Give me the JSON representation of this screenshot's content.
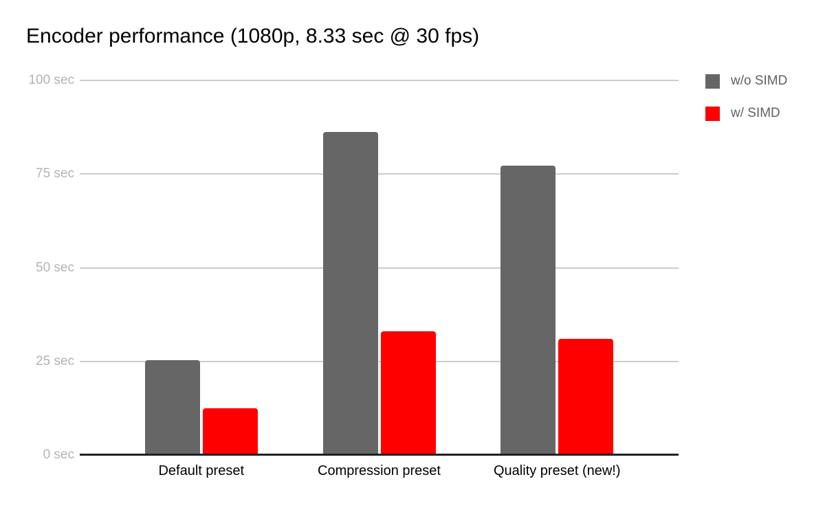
{
  "chart_data": {
    "type": "bar",
    "title": "Encoder performance (1080p, 8.33 sec @ 30 fps)",
    "categories": [
      "Default preset",
      "Compression preset",
      "Quality preset (new!)"
    ],
    "series": [
      {
        "name": "w/o SIMD",
        "color": "#666666",
        "values": [
          25.3,
          86.2,
          77.2
        ]
      },
      {
        "name": "w/ SIMD",
        "color": "#ff0000",
        "values": [
          12.4,
          33.1,
          31.0
        ]
      }
    ],
    "unit": "sec",
    "y_ticks": [
      "100 sec",
      "75 sec",
      "50 sec",
      "25 sec",
      "0 sec"
    ],
    "y_tick_values": [
      100,
      75,
      50,
      25,
      0
    ],
    "ylim": [
      0,
      100
    ],
    "grid": true,
    "legend_position": "top-right"
  }
}
